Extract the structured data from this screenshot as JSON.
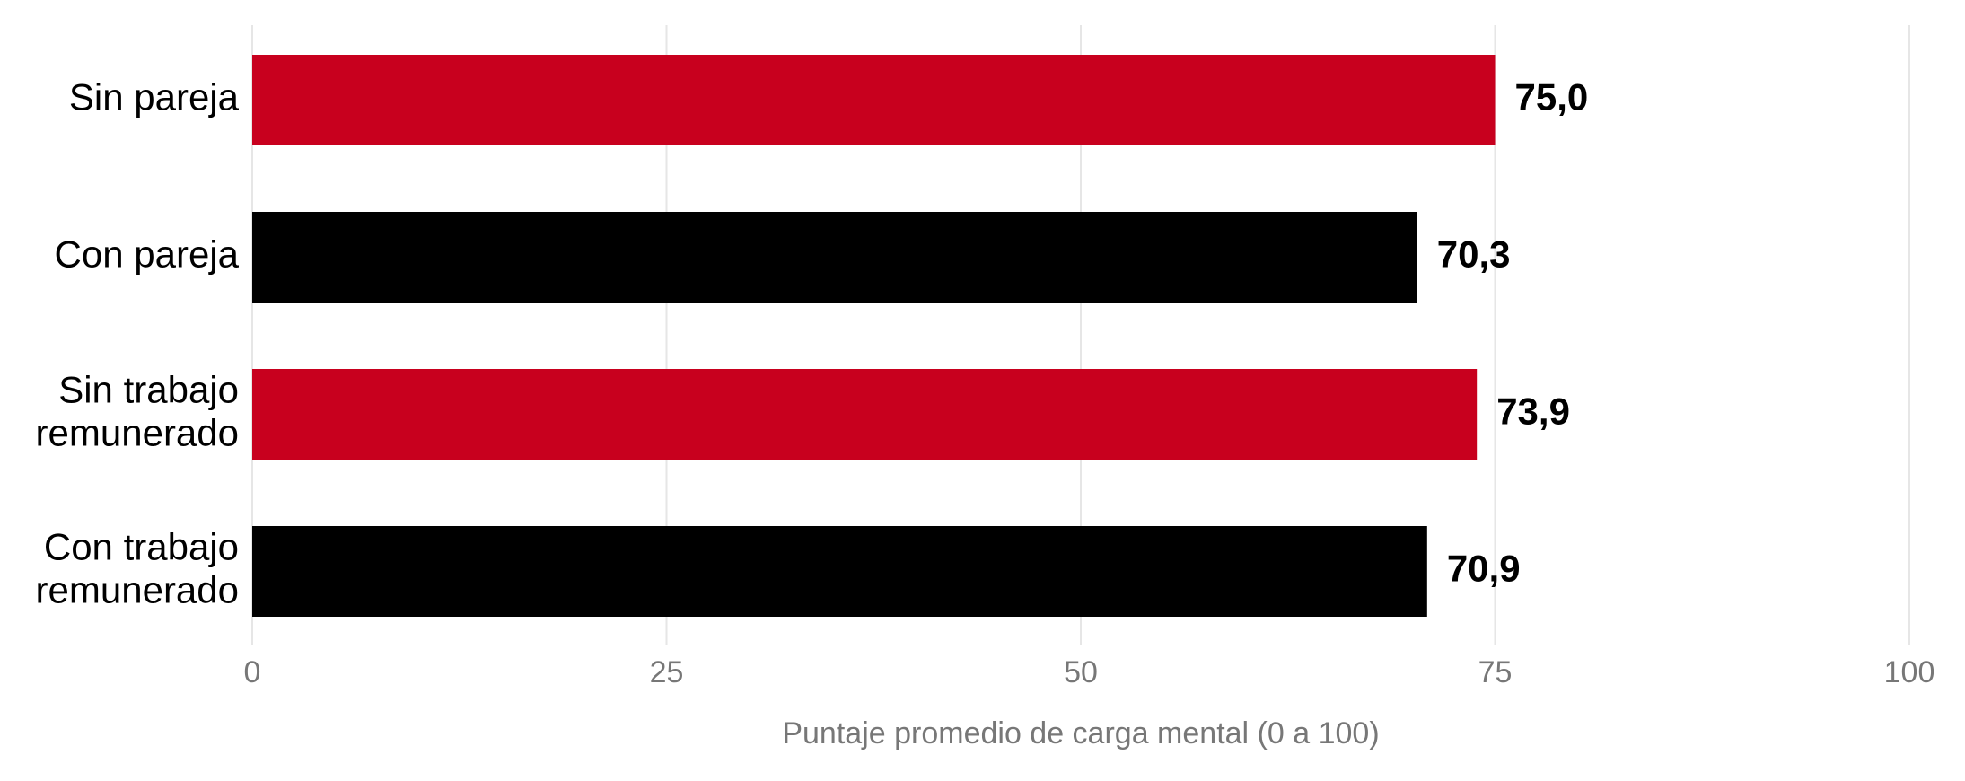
{
  "chart_data": {
    "type": "bar",
    "orientation": "horizontal",
    "categories": [
      "Sin pareja",
      "Con pareja",
      "Sin trabajo\nremunerado",
      "Con trabajo\nremunerado"
    ],
    "values": [
      75.0,
      70.3,
      73.9,
      70.9
    ],
    "value_labels": [
      "75,0",
      "70,3",
      "73,9",
      "70,9"
    ],
    "colors": [
      "#c8001e",
      "#000000",
      "#c8001e",
      "#000000"
    ],
    "x_label": "Puntaje promedio de carga mental (0 a 100)",
    "xlim": [
      0,
      100
    ],
    "xticks": [
      0,
      25,
      50,
      75,
      100
    ],
    "grid": true
  }
}
